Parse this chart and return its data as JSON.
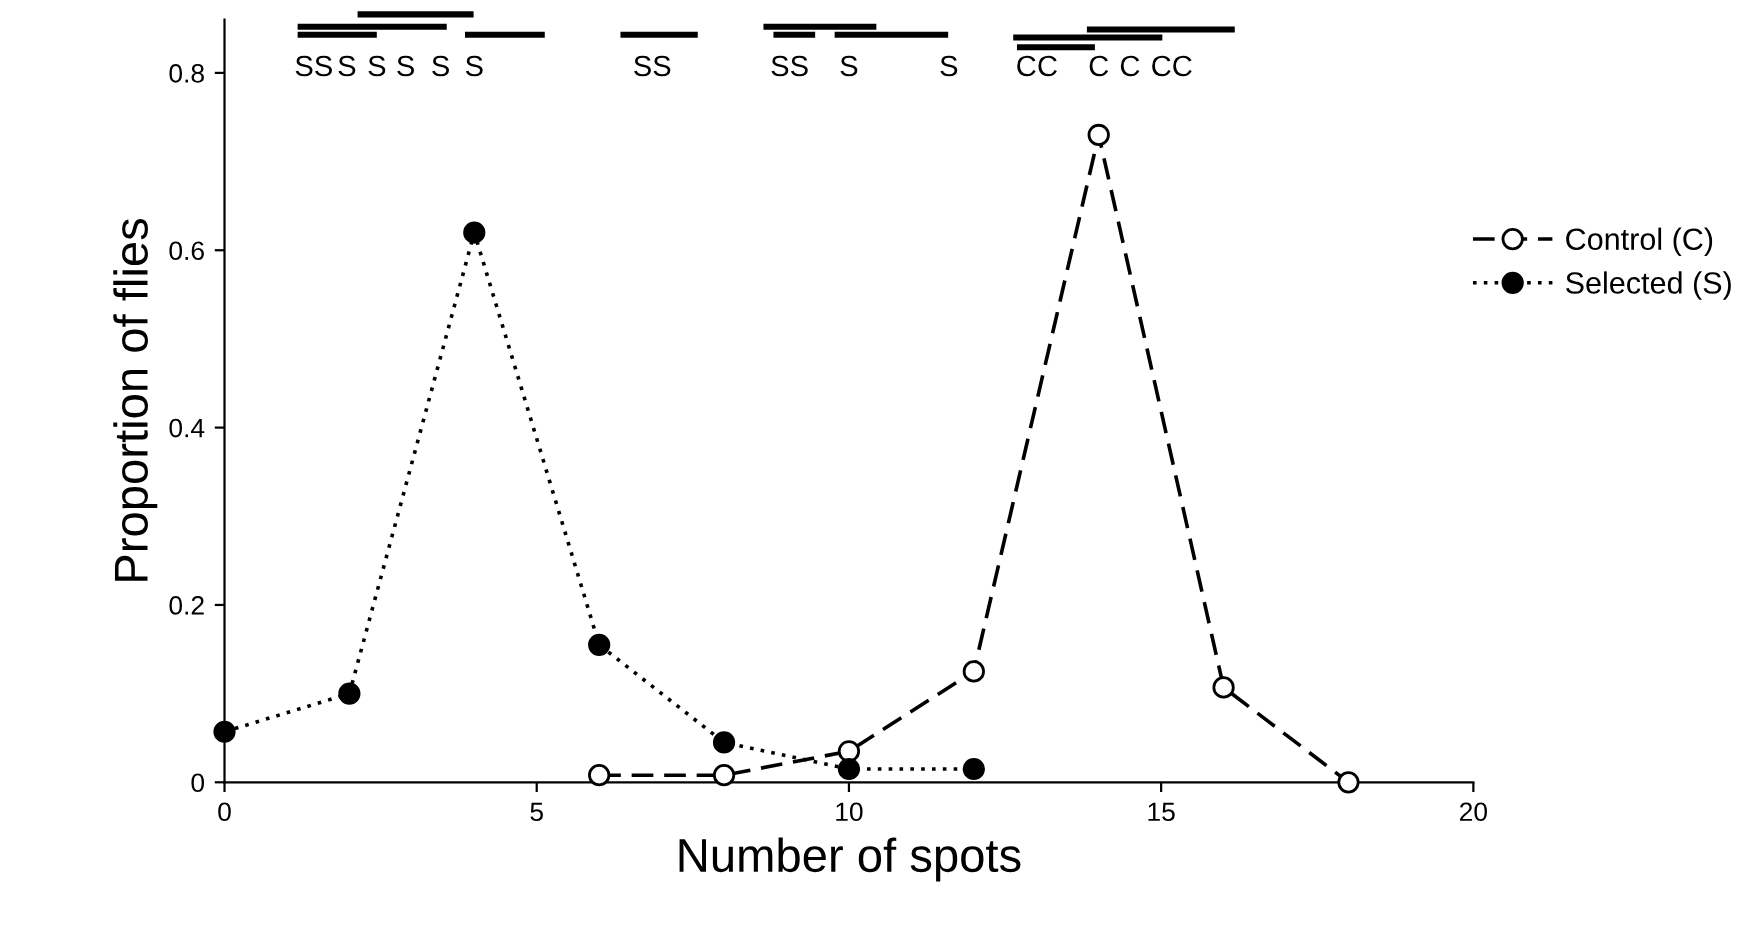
{
  "chart_data": {
    "type": "line",
    "xlabel": "Number of spots",
    "ylabel": "Proportion of flies",
    "xlim": [
      0,
      20
    ],
    "xticks": [
      0,
      5,
      10,
      15,
      20
    ],
    "ylim": [
      0,
      0.86
    ],
    "yticks": [
      0,
      0.2,
      0.4,
      0.6,
      0.8
    ],
    "grid": false,
    "legend": "right",
    "marker": "circle",
    "series": [
      {
        "name": "Control (C)",
        "color": "#000000",
        "line_style": "dashed",
        "x": [
          6,
          8,
          10,
          12,
          14,
          16,
          18
        ],
        "values": [
          0.008,
          0.008,
          0.035,
          0.125,
          0.73,
          0.107,
          0
        ]
      },
      {
        "name": "Selected (S)",
        "color": "#000000",
        "line_style": "dotted",
        "x": [
          0,
          2,
          4,
          6,
          8,
          10,
          12
        ],
        "values": [
          0.057,
          0.1,
          0.62,
          0.155,
          0.045,
          0.015,
          0.015
        ]
      }
    ],
    "annotations": [
      "SS",
      "S",
      "S",
      "S",
      "S",
      "S",
      "SS",
      "SS",
      "S",
      "S",
      "C",
      "C",
      "C",
      "C",
      "CC"
    ]
  }
}
